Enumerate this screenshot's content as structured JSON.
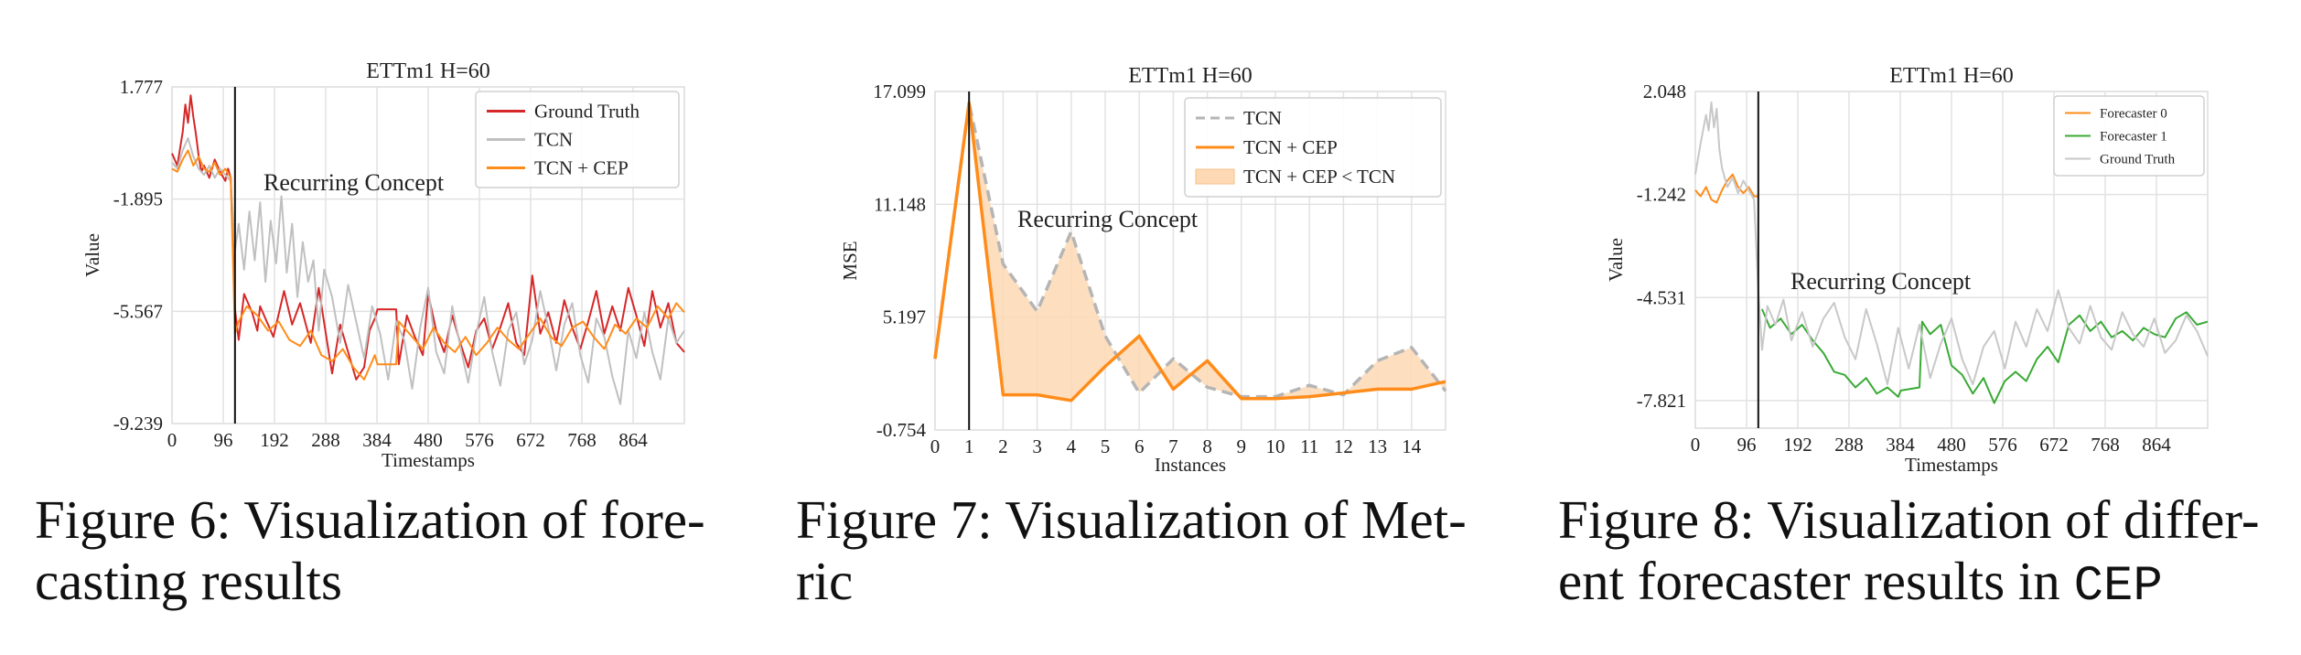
{
  "figures": [
    {
      "caption": "Figure 6: Visualization of forecasting results",
      "caption_lines": [
        "Figure 6: Visualization of fore-",
        "casting results"
      ],
      "caption_code": ""
    },
    {
      "caption": "Figure 7: Visualization of Metric",
      "caption_lines": [
        "Figure 7: Visualization of Met-",
        "ric"
      ],
      "caption_code": ""
    },
    {
      "caption": "Figure 8: Visualization of different forecaster results in CEP",
      "caption_lines": [
        "Figure 8: Visualization of differ-",
        "ent forecaster results in "
      ],
      "caption_code": "CEP"
    }
  ],
  "chart_data": [
    {
      "type": "line",
      "title": "ETTm1  H=60",
      "xlabel": "Timestamps",
      "ylabel": "Value",
      "x_ticks": [
        0,
        96,
        192,
        288,
        384,
        480,
        576,
        672,
        768,
        864
      ],
      "y_ticks": [
        1.777,
        -1.895,
        -5.567,
        -9.239
      ],
      "xlim": [
        0,
        960
      ],
      "ylim": [
        -9.239,
        1.777
      ],
      "grid": true,
      "legend_position": "top-right",
      "annotation": "Recurring Concept",
      "vline_x": 118,
      "series": [
        {
          "name": "Ground Truth",
          "color": "#d62728",
          "x": [
            0,
            10,
            20,
            25,
            30,
            35,
            40,
            45,
            50,
            55,
            60,
            70,
            80,
            90,
            100,
            105,
            110,
            118,
            125,
            135,
            150,
            160,
            165,
            175,
            190,
            210,
            225,
            240,
            260,
            275,
            290,
            300,
            315,
            330,
            345,
            360,
            370,
            380,
            385,
            420,
            425,
            440,
            455,
            470,
            480,
            495,
            510,
            525,
            540,
            555,
            570,
            585,
            600,
            615,
            630,
            645,
            660,
            675,
            690,
            705,
            720,
            735,
            750,
            765,
            780,
            795,
            810,
            825,
            840,
            855,
            870,
            885,
            900,
            915,
            930,
            945,
            960
          ],
          "y": [
            -0.4,
            -0.8,
            0.3,
            1.2,
            0.6,
            1.5,
            0.8,
            0.2,
            -0.5,
            -1.0,
            -0.8,
            -1.2,
            -0.6,
            -1.0,
            -1.3,
            -0.9,
            -1.2,
            -5.5,
            -6.5,
            -5.0,
            -5.6,
            -6.2,
            -5.4,
            -5.8,
            -6.4,
            -4.9,
            -6.0,
            -5.3,
            -6.6,
            -4.8,
            -6.5,
            -7.6,
            -6.0,
            -6.9,
            -7.8,
            -7.4,
            -6.2,
            -5.8,
            -5.5,
            -5.5,
            -7.3,
            -5.7,
            -6.4,
            -7.0,
            -5.0,
            -6.2,
            -6.9,
            -5.7,
            -6.6,
            -7.4,
            -6.2,
            -5.8,
            -6.8,
            -6.1,
            -5.3,
            -6.6,
            -7.0,
            -4.4,
            -6.3,
            -5.6,
            -6.6,
            -5.2,
            -6.1,
            -6.8,
            -5.9,
            -4.9,
            -6.3,
            -5.4,
            -6.2,
            -4.8,
            -5.7,
            -6.7,
            -4.9,
            -6.1,
            -5.3,
            -6.6,
            -6.9
          ]
        },
        {
          "name": "TCN",
          "color": "#c0c0c0",
          "x": [
            0,
            10,
            20,
            30,
            40,
            50,
            60,
            70,
            80,
            90,
            100,
            110,
            118,
            125,
            135,
            145,
            155,
            165,
            175,
            185,
            195,
            205,
            215,
            225,
            235,
            245,
            255,
            265,
            275,
            285,
            300,
            315,
            330,
            345,
            360,
            375,
            390,
            405,
            420,
            435,
            450,
            465,
            480,
            495,
            510,
            525,
            540,
            555,
            570,
            585,
            600,
            615,
            630,
            645,
            660,
            675,
            690,
            705,
            720,
            735,
            750,
            765,
            780,
            795,
            810,
            825,
            840,
            855,
            870,
            885,
            900,
            915,
            930,
            945,
            960
          ],
          "y": [
            -0.7,
            -0.9,
            -0.3,
            0.1,
            -0.5,
            -0.9,
            -1.1,
            -0.8,
            -1.2,
            -0.9,
            -1.1,
            -1.3,
            -3.6,
            -2.7,
            -4.2,
            -2.3,
            -3.9,
            -2.0,
            -4.6,
            -2.6,
            -4.0,
            -1.8,
            -4.3,
            -2.7,
            -5.1,
            -3.3,
            -4.6,
            -3.9,
            -6.2,
            -4.2,
            -5.1,
            -6.6,
            -4.7,
            -5.9,
            -7.1,
            -5.4,
            -6.3,
            -7.8,
            -5.9,
            -6.5,
            -8.1,
            -6.1,
            -4.8,
            -6.9,
            -7.6,
            -5.4,
            -6.7,
            -7.9,
            -6.3,
            -5.1,
            -6.9,
            -8.0,
            -6.2,
            -5.6,
            -7.3,
            -6.5,
            -4.9,
            -6.1,
            -7.5,
            -6.0,
            -5.3,
            -7.0,
            -7.9,
            -5.8,
            -6.4,
            -7.7,
            -8.6,
            -6.2,
            -7.1,
            -5.6,
            -6.9,
            -7.8,
            -5.8,
            -6.6,
            -6.2
          ]
        },
        {
          "name": "TCN + CEP",
          "color": "#ff8c1a",
          "x": [
            0,
            10,
            20,
            30,
            40,
            50,
            60,
            70,
            80,
            90,
            100,
            110,
            118,
            125,
            140,
            160,
            180,
            200,
            220,
            240,
            260,
            280,
            300,
            320,
            340,
            360,
            380,
            385,
            420,
            425,
            450,
            470,
            490,
            510,
            530,
            550,
            570,
            590,
            610,
            630,
            650,
            670,
            690,
            710,
            730,
            750,
            770,
            790,
            810,
            830,
            850,
            870,
            890,
            910,
            930,
            945,
            960
          ],
          "y": [
            -0.9,
            -1.0,
            -0.6,
            -0.3,
            -0.8,
            -0.5,
            -0.9,
            -1.0,
            -0.7,
            -1.1,
            -0.9,
            -1.2,
            -6.3,
            -5.9,
            -5.4,
            -5.7,
            -6.2,
            -5.9,
            -6.5,
            -6.7,
            -6.2,
            -7.0,
            -7.2,
            -6.8,
            -7.4,
            -7.8,
            -7.0,
            -7.3,
            -7.3,
            -5.9,
            -6.4,
            -6.8,
            -6.1,
            -6.6,
            -6.9,
            -6.4,
            -7.0,
            -6.6,
            -6.1,
            -6.5,
            -6.8,
            -6.3,
            -5.8,
            -6.4,
            -6.7,
            -6.1,
            -5.9,
            -6.4,
            -6.8,
            -6.0,
            -6.3,
            -5.8,
            -6.1,
            -5.4,
            -5.8,
            -5.3,
            -5.6
          ]
        }
      ]
    },
    {
      "type": "line",
      "title": "ETTm1  H=60",
      "xlabel": "Instances",
      "ylabel": "MSE",
      "x_ticks": [
        0,
        1,
        2,
        3,
        4,
        5,
        6,
        7,
        8,
        9,
        10,
        11,
        12,
        13,
        14
      ],
      "y_ticks": [
        17.099,
        11.148,
        5.197,
        -0.754
      ],
      "xlim": [
        0,
        15
      ],
      "ylim": [
        -0.754,
        17.099
      ],
      "grid": true,
      "legend_position": "top-right",
      "annotation": "Recurring Concept",
      "vline_x": 1,
      "fill_label": "TCN + CEP < TCN",
      "fill_color": "#fdd9b5",
      "x": [
        0,
        1,
        2,
        3,
        4,
        5,
        6,
        7,
        8,
        9,
        10,
        11,
        12,
        13,
        14,
        15
      ],
      "series": [
        {
          "name": "TCN",
          "color": "#b5b5b5",
          "dashed": true,
          "values": [
            3.0,
            16.5,
            8.0,
            5.5,
            9.7,
            4.2,
            1.2,
            3.0,
            1.5,
            1.0,
            1.0,
            1.6,
            1.1,
            2.9,
            3.6,
            1.3
          ]
        },
        {
          "name": "TCN + CEP",
          "color": "#ff8c1a",
          "dashed": false,
          "values": [
            3.0,
            16.5,
            1.1,
            1.1,
            0.8,
            2.6,
            4.2,
            1.4,
            2.9,
            0.9,
            0.9,
            1.0,
            1.2,
            1.4,
            1.4,
            1.8
          ]
        }
      ]
    },
    {
      "type": "line",
      "title": "ETTm1  H=60",
      "xlabel": "Timestamps",
      "ylabel": "Value",
      "x_ticks": [
        0,
        96,
        192,
        288,
        384,
        480,
        576,
        672,
        768,
        864
      ],
      "y_ticks": [
        2.048,
        -1.242,
        -4.531,
        -7.821
      ],
      "xlim": [
        0,
        960
      ],
      "ylim": [
        -8.7,
        2.048
      ],
      "grid": true,
      "legend_position": "top-right",
      "annotation": "Recurring Concept",
      "vline_x": 118,
      "series": [
        {
          "name": "Forecaster 0",
          "color": "#ff8c1a",
          "x": [
            0,
            10,
            20,
            30,
            40,
            50,
            60,
            70,
            80,
            90,
            100,
            110,
            118
          ],
          "y": [
            -1.1,
            -1.3,
            -1.0,
            -1.4,
            -1.5,
            -1.1,
            -0.8,
            -0.6,
            -1.0,
            -1.2,
            -1.0,
            -1.3,
            -1.3
          ]
        },
        {
          "name": "Forecaster 1",
          "color": "#3aaa35",
          "x": [
            125,
            140,
            160,
            180,
            200,
            220,
            240,
            260,
            280,
            300,
            320,
            340,
            360,
            380,
            385,
            420,
            425,
            440,
            460,
            480,
            500,
            520,
            540,
            560,
            580,
            600,
            620,
            640,
            660,
            680,
            700,
            720,
            740,
            760,
            780,
            800,
            820,
            840,
            860,
            880,
            900,
            920,
            940,
            960
          ],
          "y": [
            -4.9,
            -5.5,
            -5.2,
            -5.7,
            -5.4,
            -5.9,
            -6.3,
            -6.9,
            -7.0,
            -7.4,
            -7.1,
            -7.6,
            -7.4,
            -7.7,
            -7.5,
            -7.4,
            -5.3,
            -5.7,
            -5.4,
            -6.7,
            -7.0,
            -7.6,
            -7.1,
            -7.9,
            -7.2,
            -6.9,
            -7.2,
            -6.5,
            -6.1,
            -6.6,
            -5.4,
            -5.1,
            -5.6,
            -5.3,
            -5.8,
            -5.6,
            -5.9,
            -5.5,
            -5.7,
            -5.8,
            -5.2,
            -5.0,
            -5.4,
            -5.3
          ]
        },
        {
          "name": "Ground Truth",
          "color": "#c8c8c8",
          "x": [
            0,
            10,
            20,
            25,
            30,
            35,
            40,
            45,
            50,
            60,
            70,
            80,
            90,
            100,
            110,
            118,
            125,
            135,
            150,
            165,
            180,
            200,
            220,
            240,
            260,
            280,
            300,
            320,
            340,
            360,
            380,
            400,
            420,
            440,
            460,
            480,
            500,
            520,
            540,
            560,
            580,
            600,
            620,
            640,
            660,
            680,
            700,
            720,
            740,
            760,
            780,
            800,
            820,
            840,
            860,
            880,
            900,
            920,
            940,
            960
          ],
          "y": [
            -0.6,
            0.4,
            1.3,
            0.8,
            1.7,
            0.9,
            1.5,
            0.2,
            -0.4,
            -1.0,
            -0.7,
            -1.2,
            -0.8,
            -1.1,
            -1.4,
            -4.3,
            -6.2,
            -4.8,
            -5.4,
            -4.6,
            -5.9,
            -5.0,
            -6.1,
            -5.2,
            -4.7,
            -5.8,
            -6.5,
            -4.9,
            -6.0,
            -7.3,
            -5.5,
            -6.8,
            -5.4,
            -7.1,
            -6.0,
            -5.2,
            -6.5,
            -7.3,
            -6.1,
            -5.6,
            -6.8,
            -5.3,
            -6.1,
            -4.9,
            -5.6,
            -4.3,
            -5.5,
            -6.0,
            -4.8,
            -5.8,
            -6.2,
            -5.0,
            -5.7,
            -6.1,
            -5.2,
            -6.3,
            -5.9,
            -5.1,
            -5.6,
            -6.4
          ]
        }
      ]
    }
  ]
}
